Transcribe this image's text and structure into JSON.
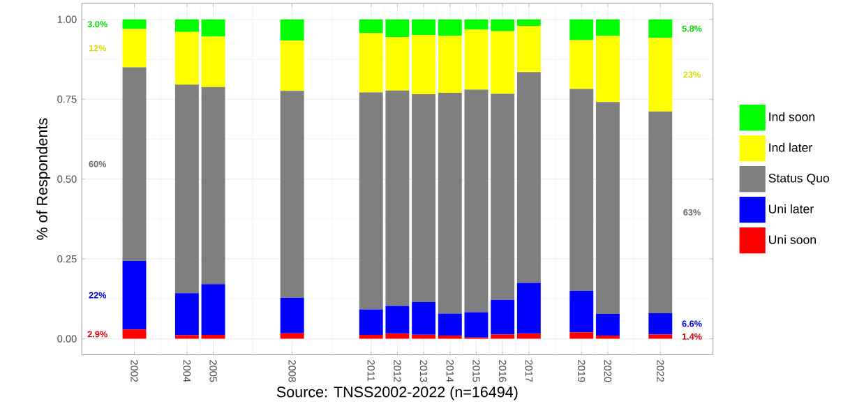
{
  "chart_data": {
    "type": "bar",
    "stacked": true,
    "xlabel": "Source: TNSS2002-2022 (n=16494)",
    "ylabel": "% of Respondents",
    "x": [
      2002,
      2004,
      2005,
      2008,
      2011,
      2012,
      2013,
      2014,
      2015,
      2016,
      2017,
      2019,
      2020,
      2022
    ],
    "xlim": [
      2000,
      2024
    ],
    "xticks": [
      2002,
      2004,
      2005,
      2008,
      2011,
      2012,
      2013,
      2014,
      2015,
      2016,
      2017,
      2019,
      2020,
      2022
    ],
    "ylim": [
      -0.05,
      1.05
    ],
    "yticks": [
      {
        "value": 0,
        "label": "0.00"
      },
      {
        "value": 0.25,
        "label": "0.25"
      },
      {
        "value": 0.5,
        "label": "0.50"
      },
      {
        "value": 0.75,
        "label": "0.75"
      },
      {
        "value": 1,
        "label": "1.00"
      }
    ],
    "grid": true,
    "legend": "right",
    "annotations": [
      "3.0%",
      "12%",
      "60%",
      "22%",
      "2.9%",
      "5.8%",
      "23%",
      "63%",
      "6.6%",
      "1.4%"
    ],
    "series": [
      {
        "name": "Uni soon",
        "color": "#ff0000",
        "values": [
          0.029,
          0.011,
          0.012,
          0.017,
          0.012,
          0.016,
          0.013,
          0.01,
          0.004,
          0.014,
          0.016,
          0.02,
          0.01,
          0.014
        ]
      },
      {
        "name": "Uni later",
        "color": "#0000ff",
        "values": [
          0.215,
          0.132,
          0.159,
          0.111,
          0.08,
          0.087,
          0.102,
          0.069,
          0.079,
          0.108,
          0.159,
          0.13,
          0.068,
          0.066
        ]
      },
      {
        "name": "Status Quo",
        "color": "#7f7f7f",
        "values": [
          0.606,
          0.653,
          0.617,
          0.648,
          0.679,
          0.674,
          0.651,
          0.691,
          0.697,
          0.645,
          0.66,
          0.632,
          0.663,
          0.632
        ]
      },
      {
        "name": "Ind later",
        "color": "#ffff00",
        "values": [
          0.12,
          0.165,
          0.158,
          0.158,
          0.186,
          0.168,
          0.185,
          0.178,
          0.188,
          0.196,
          0.145,
          0.153,
          0.207,
          0.23
        ]
      },
      {
        "name": "Ind soon",
        "color": "#00ff00",
        "values": [
          0.03,
          0.039,
          0.054,
          0.066,
          0.043,
          0.055,
          0.049,
          0.052,
          0.032,
          0.037,
          0.02,
          0.065,
          0.052,
          0.058
        ]
      }
    ]
  }
}
